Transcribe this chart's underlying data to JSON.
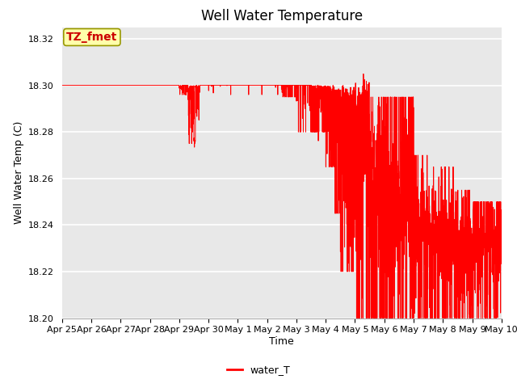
{
  "title": "Well Water Temperature",
  "xlabel": "Time",
  "ylabel": "Well Water Temp (C)",
  "legend_label": "water_T",
  "line_color": "#ff0000",
  "background_color": "#e8e8e8",
  "figure_bg": "#ffffff",
  "ylim": [
    18.2,
    18.325
  ],
  "yticks": [
    18.2,
    18.22,
    18.24,
    18.26,
    18.28,
    18.3,
    18.32
  ],
  "annotation_text": "TZ_fmet",
  "annotation_color": "#cc0000",
  "annotation_bg": "#ffffaa",
  "annotation_border": "#999900",
  "xtick_labels": [
    "Apr 25",
    "Apr 26",
    "Apr 27",
    "Apr 28",
    "Apr 29",
    "Apr 30",
    "May 1",
    "May 2",
    "May 3",
    "May 4",
    "May 5",
    "May 6",
    "May 7",
    "May 8",
    "May 9",
    "May 10"
  ],
  "xlim": [
    0,
    15
  ],
  "title_fontsize": 12,
  "tick_fontsize": 8,
  "label_fontsize": 9
}
